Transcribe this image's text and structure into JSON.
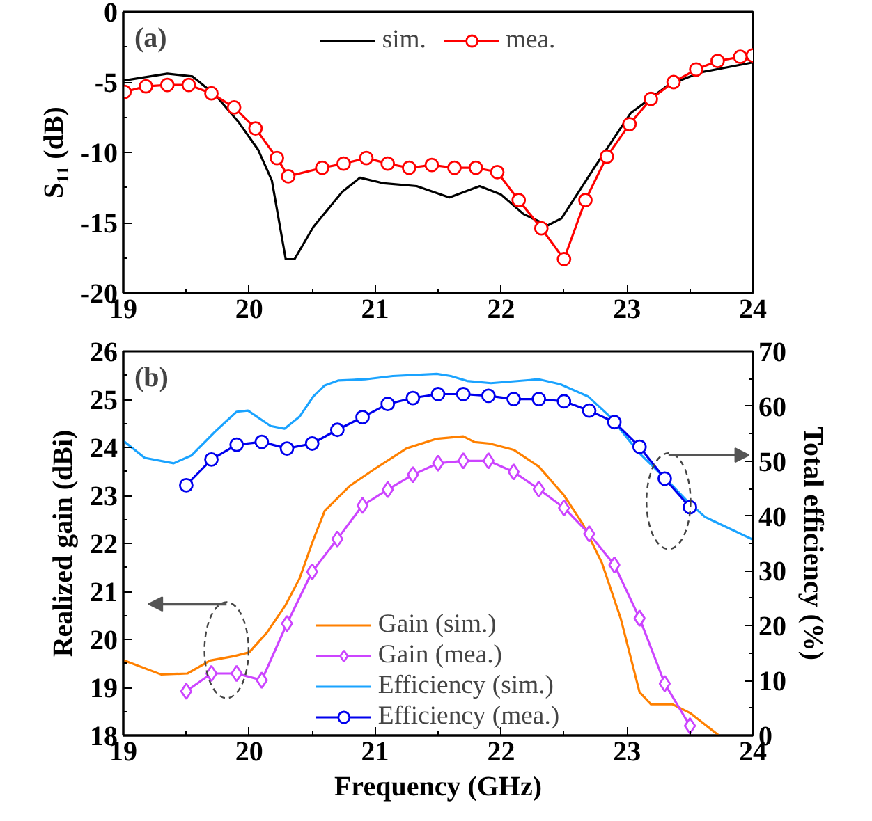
{
  "chart_data": [
    {
      "type": "line",
      "ylabel": "S₁₁ (dB)",
      "annotations": [
        "(a)"
      ],
      "xlim": [
        19,
        24
      ],
      "ylim": [
        -20,
        0
      ],
      "xticks": [
        19,
        20,
        21,
        22,
        23,
        24
      ],
      "yticks": [
        -20,
        -15,
        -10,
        -5,
        0
      ],
      "legend": "top",
      "grid": false,
      "series": [
        {
          "name": "sim.",
          "color": "#000000",
          "marker": "none",
          "x": [
            19,
            19.35,
            19.55,
            19.73,
            19.92,
            20.07,
            20.18,
            20.29,
            20.36,
            20.51,
            20.74,
            20.88,
            21.07,
            21.33,
            21.59,
            21.83,
            22.0,
            22.18,
            22.37,
            22.48,
            22.74,
            23.03,
            23.33,
            23.59,
            24.0
          ],
          "values": [
            -4.9,
            -4.4,
            -4.6,
            -5.9,
            -7.9,
            -9.8,
            -12.0,
            -17.6,
            -17.6,
            -15.3,
            -12.8,
            -11.8,
            -12.2,
            -12.4,
            -13.2,
            -12.4,
            -13.0,
            -14.4,
            -15.2,
            -14.7,
            -11.1,
            -7.2,
            -5.2,
            -4.3,
            -3.6
          ]
        },
        {
          "name": "mea.",
          "color": "#ff0000",
          "marker": "circle",
          "x": [
            19.01,
            19.18,
            19.35,
            19.52,
            19.7,
            19.88,
            20.05,
            20.22,
            20.31,
            20.58,
            20.75,
            20.93,
            21.1,
            21.27,
            21.45,
            21.63,
            21.8,
            21.97,
            22.14,
            22.32,
            22.5,
            22.67,
            22.84,
            23.02,
            23.19,
            23.37,
            23.55,
            23.72,
            23.9,
            24.0
          ],
          "values": [
            -5.7,
            -5.3,
            -5.2,
            -5.2,
            -5.8,
            -6.8,
            -8.3,
            -10.4,
            -11.7,
            -11.1,
            -10.8,
            -10.4,
            -10.8,
            -11.1,
            -10.9,
            -11.1,
            -11.1,
            -11.4,
            -13.4,
            -15.4,
            -17.6,
            -13.4,
            -10.3,
            -8.0,
            -6.2,
            -5.0,
            -4.1,
            -3.5,
            -3.2,
            -3.1
          ]
        }
      ]
    },
    {
      "type": "line",
      "xlabel": "Frequency (GHz)",
      "ylabel": "Realized gain (dBi)",
      "y2label": "Total efficiency (%)",
      "annotations": [
        "(b)"
      ],
      "xlim": [
        19,
        24
      ],
      "ylim": [
        18,
        26
      ],
      "y2lim": [
        0,
        70
      ],
      "xticks": [
        19,
        20,
        21,
        22,
        23,
        24
      ],
      "yticks": [
        18,
        19,
        20,
        21,
        22,
        23,
        24,
        25,
        26
      ],
      "y2ticks": [
        0,
        10,
        20,
        30,
        40,
        50,
        60,
        70
      ],
      "legend": "bottom",
      "grid": false,
      "series": [
        {
          "name": "Gain (sim.)",
          "color": "#ff8000",
          "marker": "none",
          "x": [
            19,
            19.3,
            19.51,
            19.69,
            19.88,
            20,
            20.14,
            20.29,
            20.4,
            20.51,
            20.6,
            20.8,
            20.99,
            21.25,
            21.49,
            21.7,
            21.79,
            21.91,
            22.1,
            22.3,
            22.5,
            22.65,
            22.8,
            22.95,
            23.1,
            23.19,
            23.36,
            23.5,
            23.73
          ],
          "values": [
            19.57,
            19.27,
            19.29,
            19.56,
            19.65,
            19.73,
            20.14,
            20.72,
            21.27,
            22.08,
            22.68,
            23.2,
            23.54,
            23.98,
            24.18,
            24.23,
            24.11,
            24.08,
            23.95,
            23.6,
            23.0,
            22.4,
            21.6,
            20.44,
            18.9,
            18.65,
            18.65,
            18.47,
            18.0
          ]
        },
        {
          "name": "Gain (mea.)",
          "color": "#cc44ff",
          "marker": "diamond",
          "x": [
            19.5,
            19.7,
            19.9,
            20.1,
            20.3,
            20.5,
            20.7,
            20.9,
            21.1,
            21.3,
            21.5,
            21.7,
            21.9,
            22.1,
            22.3,
            22.5,
            22.7,
            22.9,
            23.1,
            23.3,
            23.5
          ],
          "values": [
            18.92,
            19.29,
            19.29,
            19.15,
            20.33,
            21.41,
            22.09,
            22.79,
            23.12,
            23.43,
            23.67,
            23.72,
            23.72,
            23.49,
            23.13,
            22.74,
            22.2,
            21.55,
            20.44,
            19.08,
            18.2
          ]
        },
        {
          "name": "Efficiency (sim.)",
          "color": "#1aa3ff",
          "marker": "none",
          "axis": "y2",
          "x": [
            19,
            19.17,
            19.4,
            19.54,
            19.73,
            19.9,
            19.99,
            20.17,
            20.28,
            20.4,
            20.51,
            20.6,
            20.71,
            20.92,
            21.14,
            21.49,
            21.6,
            21.73,
            21.92,
            22.3,
            22.47,
            22.69,
            22.87,
            23.1,
            23.32,
            23.47,
            23.62,
            24
          ],
          "values": [
            53.7,
            50.6,
            49.6,
            51.0,
            55.4,
            59.0,
            59.2,
            56.4,
            55.9,
            58.1,
            61.8,
            63.8,
            64.7,
            64.9,
            65.5,
            65.9,
            65.5,
            64.6,
            64.2,
            64.9,
            64.0,
            61.8,
            58.0,
            51.4,
            46.5,
            42.9,
            39.8,
            35.7
          ]
        },
        {
          "name": "Efficiency (mea.)",
          "color": "#0000ee",
          "marker": "circle",
          "axis": "y2",
          "x": [
            19.5,
            19.7,
            19.9,
            20.1,
            20.3,
            20.5,
            20.7,
            20.9,
            21.1,
            21.3,
            21.5,
            21.7,
            21.9,
            22.1,
            22.3,
            22.5,
            22.7,
            22.9,
            23.1,
            23.3,
            23.5
          ],
          "values": [
            45.6,
            50.3,
            53.0,
            53.5,
            52.3,
            53.2,
            55.7,
            58.0,
            60.4,
            61.5,
            62.2,
            62.2,
            61.9,
            61.3,
            61.3,
            60.9,
            59.2,
            57.1,
            52.6,
            46.8,
            41.6
          ]
        }
      ]
    }
  ]
}
